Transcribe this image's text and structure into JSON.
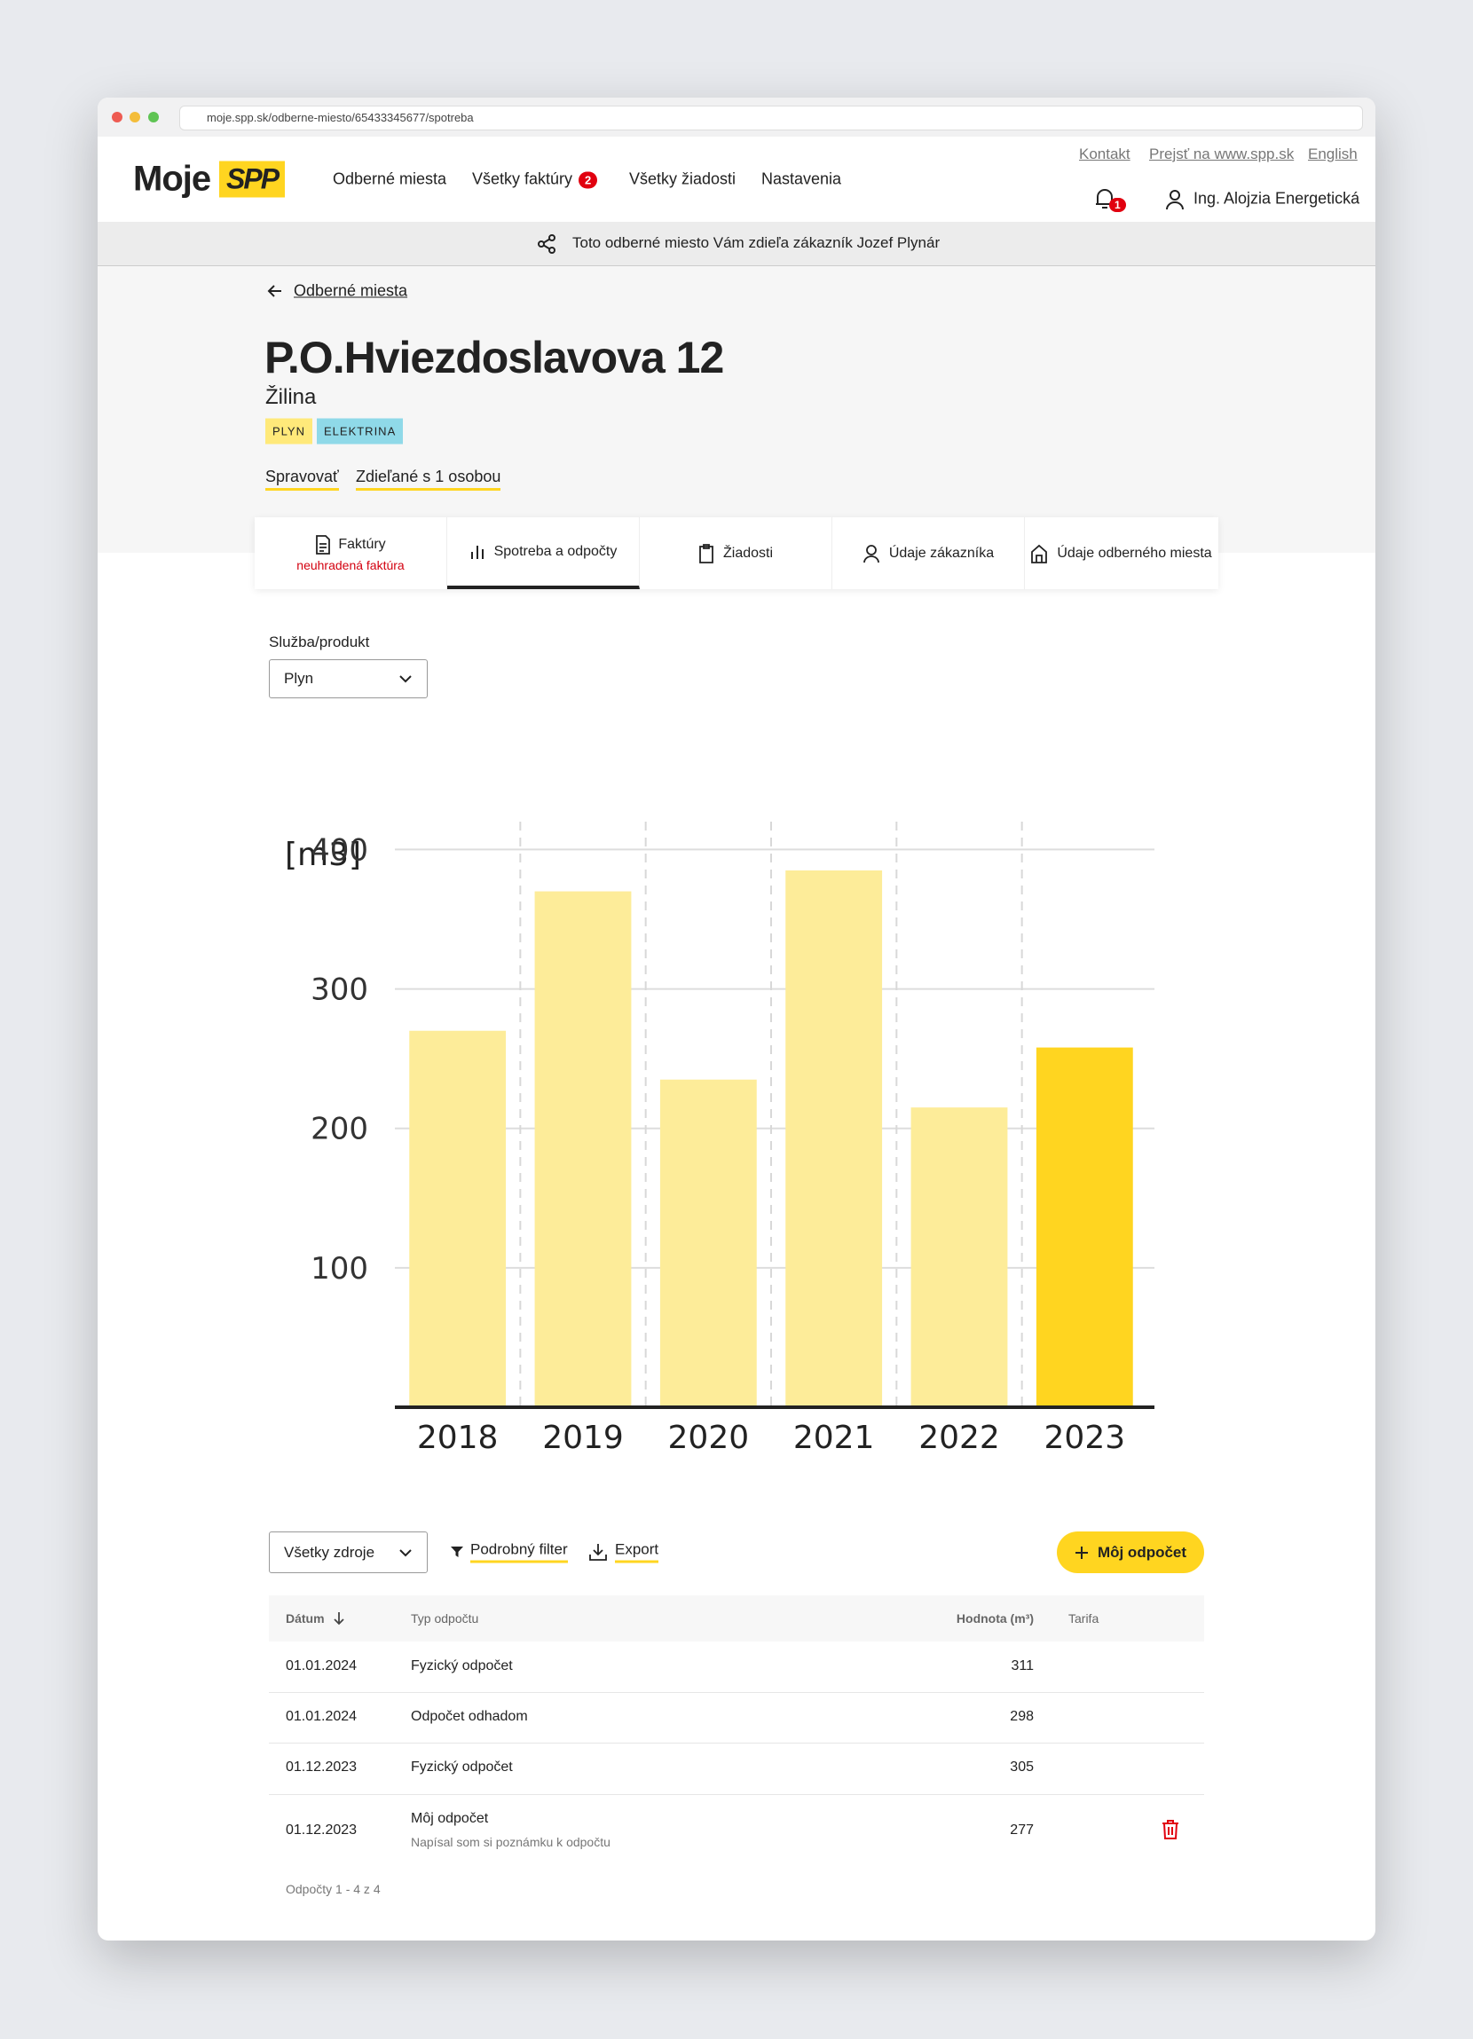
{
  "browser": {
    "url": "moje.spp.sk/odberne-miesto/65433345677/spotreba"
  },
  "header": {
    "logo_text": "Moje",
    "logo_mark": "SPP",
    "nav": [
      "Odberné miesta",
      "Všetky faktúry",
      "Všetky žiadosti",
      "Nastavenia"
    ],
    "invoice_badge": 2,
    "top_links": [
      "Kontakt",
      "Prejsť na www.spp.sk",
      "English"
    ],
    "notification_count": 1,
    "user": "Ing. Alojzia Energetická"
  },
  "banner": "Toto odberné miesto Vám zdieľa zákazník Jozef Plynár",
  "back_link": "Odberné miesta",
  "place": {
    "title": "P.O.Hviezdoslavova 12",
    "city": "Žilina",
    "tags": [
      "PLYN",
      "ELEKTRINA"
    ],
    "actions": [
      "Spravovať",
      "Zdieľané s 1 osobou"
    ]
  },
  "tabs": [
    {
      "label": "Faktúry",
      "note": "neuhradená faktúra"
    },
    {
      "label": "Spotreba a odpočty"
    },
    {
      "label": "Žiadosti"
    },
    {
      "label": "Údaje zákazníka"
    },
    {
      "label": "Údaje odberného miesta"
    }
  ],
  "filter": {
    "label": "Služba/produkt",
    "value": "Plyn"
  },
  "chart_data": {
    "type": "bar",
    "unit_label": "[m3]",
    "categories": [
      "2018",
      "2019",
      "2020",
      "2021",
      "2022",
      "2023"
    ],
    "values": [
      270,
      370,
      235,
      385,
      215,
      258
    ],
    "colors": [
      "#fdec99",
      "#fdec99",
      "#fdec99",
      "#fdec99",
      "#fdec99",
      "#ffd520"
    ],
    "ylim": [
      0,
      420
    ],
    "yticks": [
      100,
      200,
      300,
      400
    ],
    "grid": true
  },
  "toolbar": {
    "source": "Všetky zdroje",
    "filter": "Podrobný filter",
    "export": "Export",
    "add_button": "Môj odpočet"
  },
  "table": {
    "columns": [
      "Dátum",
      "Typ odpočtu",
      "Hodnota (m³)",
      "Tarifa"
    ],
    "rows": [
      {
        "date": "01.01.2024",
        "type": "Fyzický odpočet",
        "value": 311
      },
      {
        "date": "01.01.2024",
        "type": "Odpočet odhadom",
        "value": 298
      },
      {
        "date": "01.12.2023",
        "type": "Fyzický odpočet",
        "value": 305
      },
      {
        "date": "01.12.2023",
        "type": "Môj odpočet",
        "note": "Napísal som si poznámku k odpočtu",
        "value": 277
      }
    ]
  },
  "pagination": "Odpočty 1 - 4 z 4"
}
